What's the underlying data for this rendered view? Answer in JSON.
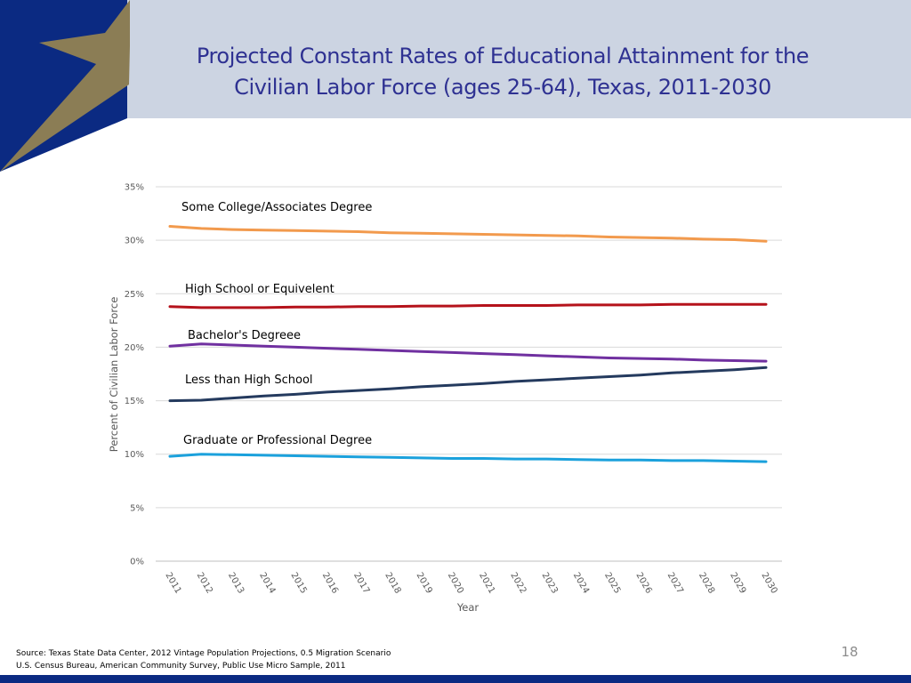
{
  "slide": {
    "title_line1": "Projected Constant Rates of Educational Attainment for the",
    "title_line2": "Civilian Labor Force (ages 25-64), Texas, 2011-2030",
    "source_line1": "Source: Texas State Data Center, 2012 Vintage Population Projections, 0.5 Migration Scenario",
    "source_line2": "U.S. Census Bureau, American Community Survey, Public Use Micro Sample, 2011",
    "page_number": "18"
  },
  "colors": {
    "header_band": "#ccd4e2",
    "logo_blue": "#0b2a82",
    "logo_star": "#8b7d55",
    "title": "#2e3192",
    "footer_bar": "#0b2a82"
  },
  "chart_data": {
    "type": "line",
    "title": "",
    "xlabel": "Year",
    "ylabel": "Percent of Civilian Labor Force",
    "ylim": [
      0,
      35
    ],
    "yticks": [
      "0%",
      "5%",
      "10%",
      "15%",
      "20%",
      "25%",
      "30%",
      "35%"
    ],
    "ytick_values": [
      0,
      5,
      10,
      15,
      20,
      25,
      30,
      35
    ],
    "x": [
      "2011",
      "2012",
      "2013",
      "2014",
      "2015",
      "2016",
      "2017",
      "2018",
      "2019",
      "2020",
      "2021",
      "2022",
      "2023",
      "2024",
      "2025",
      "2026",
      "2027",
      "2028",
      "2029",
      "2030"
    ],
    "grid": true,
    "legend": "none (series labeled directly on chart)",
    "series": [
      {
        "name": "Some College/Associates Degree",
        "color": "#f29a4d",
        "values": [
          31.3,
          31.1,
          31.0,
          30.95,
          30.9,
          30.85,
          30.8,
          30.7,
          30.65,
          30.6,
          30.55,
          30.5,
          30.45,
          30.4,
          30.3,
          30.25,
          30.2,
          30.1,
          30.05,
          29.9
        ]
      },
      {
        "name": "High School or Equivelent",
        "color": "#b5121b",
        "values": [
          23.8,
          23.7,
          23.7,
          23.7,
          23.75,
          23.75,
          23.8,
          23.8,
          23.85,
          23.85,
          23.9,
          23.9,
          23.9,
          23.95,
          23.95,
          23.95,
          24.0,
          24.0,
          24.0,
          24.0
        ]
      },
      {
        "name": "Bachelor's Degreee",
        "color": "#7030a0",
        "values": [
          20.1,
          20.3,
          20.2,
          20.1,
          20.0,
          19.9,
          19.8,
          19.7,
          19.6,
          19.5,
          19.4,
          19.3,
          19.2,
          19.1,
          19.0,
          18.95,
          18.9,
          18.8,
          18.75,
          18.7
        ]
      },
      {
        "name": "Less than High School",
        "color": "#243a5e",
        "values": [
          15.0,
          15.05,
          15.25,
          15.45,
          15.6,
          15.8,
          15.95,
          16.1,
          16.3,
          16.45,
          16.6,
          16.8,
          16.95,
          17.1,
          17.25,
          17.4,
          17.6,
          17.75,
          17.9,
          18.1
        ]
      },
      {
        "name": "Graduate or Professional Degree",
        "color": "#1ba1dc",
        "values": [
          9.8,
          10.0,
          9.95,
          9.9,
          9.85,
          9.8,
          9.75,
          9.7,
          9.65,
          9.6,
          9.6,
          9.55,
          9.55,
          9.5,
          9.45,
          9.45,
          9.4,
          9.4,
          9.35,
          9.3
        ]
      }
    ]
  }
}
